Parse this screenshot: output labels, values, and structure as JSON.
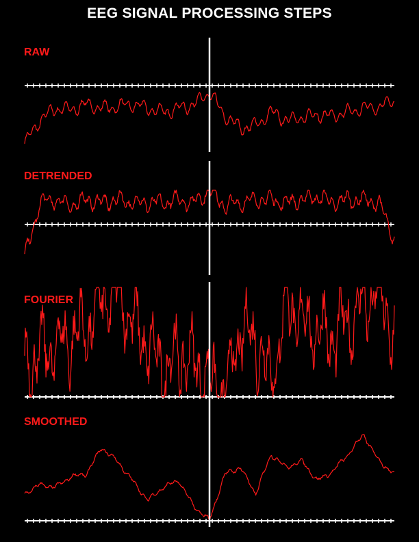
{
  "title": "EEG SIGNAL PROCESSING STEPS",
  "colors": {
    "background": "#000000",
    "text": "#ffffff",
    "trace": "#ff1a1a",
    "label": "#ff1a1a",
    "axis": "#ffffff"
  },
  "chart_data": [
    {
      "type": "line",
      "label": "RAW",
      "samples": 540,
      "event_marker": "vertical white line at mid-record",
      "series": [
        {
          "values": [
            0.05,
            0.35,
            0.5,
            0.48,
            0.55,
            0.5,
            0.52,
            0.55,
            0.5,
            0.45,
            0.5,
            0.55,
            0.7,
            0.4,
            0.25,
            0.28,
            0.45,
            0.35,
            0.38,
            0.42,
            0.4,
            0.45,
            0.5,
            0.52,
            0.6
          ]
        }
      ]
    },
    {
      "type": "line",
      "label": "DETRENDED",
      "samples": 540,
      "event_marker": "vertical white line at mid-record",
      "series": [
        {
          "values": [
            -0.9,
            0.0,
            0.05,
            -0.05,
            0.05,
            0.0,
            0.05,
            0.0,
            0.0,
            0.0,
            0.05,
            0.0,
            0.2,
            -0.05,
            0.0,
            0.05,
            0.05,
            0.0,
            0.05,
            0.1,
            0.0,
            0.05,
            0.05,
            0.0,
            -0.6
          ]
        }
      ]
    },
    {
      "type": "line",
      "label": "FOURIER",
      "samples": 540,
      "event_marker": "vertical white line at mid-record",
      "series": [
        {
          "values": [
            0.25,
            0.3,
            0.35,
            0.4,
            0.45,
            0.6,
            0.7,
            0.5,
            0.35,
            0.2,
            0.3,
            0.25,
            0.15,
            0.05,
            0.45,
            0.4,
            0.15,
            0.6,
            0.5,
            0.45,
            0.4,
            0.5,
            0.6,
            0.7,
            0.4
          ]
        }
      ]
    },
    {
      "type": "line",
      "label": "SMOOTHED",
      "samples": 540,
      "event_marker": "vertical white line at mid-record",
      "series": [
        {
          "values": [
            0.25,
            0.32,
            0.3,
            0.38,
            0.4,
            0.6,
            0.5,
            0.35,
            0.2,
            0.3,
            0.35,
            0.15,
            0.05,
            0.4,
            0.45,
            0.25,
            0.55,
            0.45,
            0.5,
            0.35,
            0.42,
            0.55,
            0.7,
            0.5,
            0.4
          ]
        }
      ]
    }
  ]
}
